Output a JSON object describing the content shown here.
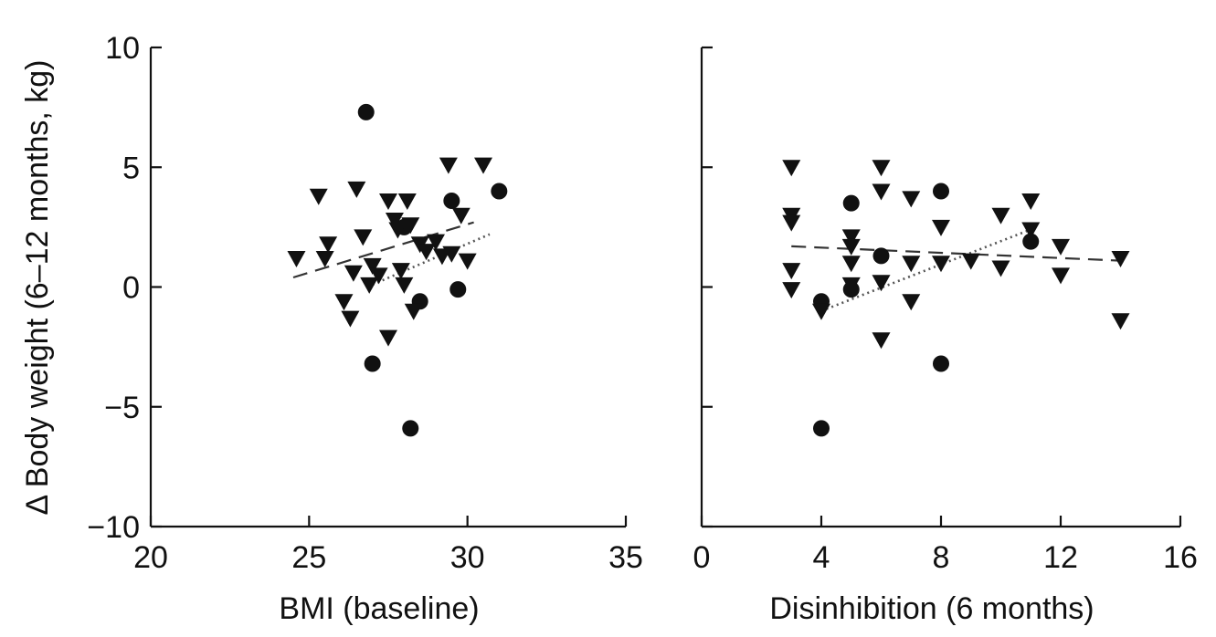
{
  "chart_data": [
    {
      "type": "scatter",
      "title": "",
      "xlabel": "BMI (baseline)",
      "ylabel": "Δ Body weight (6–12 months, kg)",
      "xlim": [
        20,
        35
      ],
      "ylim": [
        -10,
        10
      ],
      "xticks": [
        "20",
        "25",
        "30",
        "35"
      ],
      "yticks": [
        "10",
        "5",
        "0",
        "−5",
        "−10"
      ],
      "grid": false,
      "series": [
        {
          "marker": "circle",
          "points": [
            [
              26.8,
              7.3
            ],
            [
              27.0,
              -3.2
            ],
            [
              28.2,
              -5.9
            ],
            [
              28.5,
              -0.6
            ],
            [
              29.5,
              3.6
            ],
            [
              29.7,
              -0.1
            ],
            [
              31.0,
              4.0
            ],
            [
              28.0,
              2.5
            ]
          ]
        },
        {
          "marker": "triangle-down",
          "points": [
            [
              24.6,
              1.2
            ],
            [
              25.3,
              3.8
            ],
            [
              25.5,
              1.2
            ],
            [
              25.6,
              1.8
            ],
            [
              26.1,
              -0.6
            ],
            [
              26.3,
              -1.3
            ],
            [
              26.4,
              0.6
            ],
            [
              26.5,
              4.1
            ],
            [
              26.7,
              2.1
            ],
            [
              26.9,
              0.1
            ],
            [
              27.0,
              0.9
            ],
            [
              27.2,
              0.5
            ],
            [
              27.5,
              3.6
            ],
            [
              27.5,
              -2.1
            ],
            [
              27.7,
              2.8
            ],
            [
              27.8,
              2.4
            ],
            [
              27.9,
              0.7
            ],
            [
              28.0,
              0.1
            ],
            [
              28.1,
              3.6
            ],
            [
              28.2,
              2.6
            ],
            [
              28.3,
              -1.0
            ],
            [
              28.5,
              1.8
            ],
            [
              28.7,
              1.5
            ],
            [
              29.0,
              1.9
            ],
            [
              29.2,
              1.3
            ],
            [
              29.4,
              5.1
            ],
            [
              29.5,
              1.4
            ],
            [
              29.8,
              3.0
            ],
            [
              30.0,
              1.1
            ],
            [
              30.5,
              5.1
            ]
          ]
        }
      ],
      "fit_lines": [
        {
          "style": "dashed",
          "from": [
            24.5,
            0.4
          ],
          "to": [
            30.2,
            2.7
          ]
        },
        {
          "style": "dotted",
          "from": [
            27.0,
            0.1
          ],
          "to": [
            30.7,
            2.2
          ]
        }
      ]
    },
    {
      "type": "scatter",
      "title": "",
      "xlabel": "Disinhibition (6 months)",
      "ylabel": "",
      "xlim": [
        0,
        16
      ],
      "ylim": [
        -10,
        10
      ],
      "xticks": [
        "0",
        "4",
        "8",
        "12",
        "16"
      ],
      "yticks": [],
      "grid": false,
      "series": [
        {
          "marker": "circle",
          "points": [
            [
              4,
              -0.6
            ],
            [
              4,
              -5.9
            ],
            [
              5,
              3.5
            ],
            [
              5,
              -0.1
            ],
            [
              6,
              1.3
            ],
            [
              8,
              4.0
            ],
            [
              8,
              -3.2
            ],
            [
              11,
              1.9
            ]
          ]
        },
        {
          "marker": "triangle-down",
          "points": [
            [
              3,
              5.0
            ],
            [
              3,
              3.0
            ],
            [
              3,
              2.7
            ],
            [
              3,
              0.7
            ],
            [
              3,
              -0.1
            ],
            [
              4,
              -1.0
            ],
            [
              5,
              2.1
            ],
            [
              5,
              1.7
            ],
            [
              5,
              1.0
            ],
            [
              5,
              0.1
            ],
            [
              6,
              5.0
            ],
            [
              6,
              4.0
            ],
            [
              6,
              0.2
            ],
            [
              6,
              -2.2
            ],
            [
              7,
              3.7
            ],
            [
              7,
              1.0
            ],
            [
              7,
              -0.6
            ],
            [
              8,
              2.5
            ],
            [
              8,
              1.0
            ],
            [
              9,
              1.1
            ],
            [
              10,
              3.0
            ],
            [
              10,
              0.8
            ],
            [
              11,
              3.6
            ],
            [
              11,
              2.4
            ],
            [
              12,
              1.7
            ],
            [
              12,
              0.5
            ],
            [
              14,
              1.2
            ],
            [
              14,
              -1.4
            ]
          ]
        }
      ],
      "fit_lines": [
        {
          "style": "dashed",
          "from": [
            3,
            1.7
          ],
          "to": [
            14,
            1.1
          ]
        },
        {
          "style": "dotted",
          "from": [
            4,
            -1.0
          ],
          "to": [
            11,
            2.4
          ]
        }
      ]
    }
  ]
}
